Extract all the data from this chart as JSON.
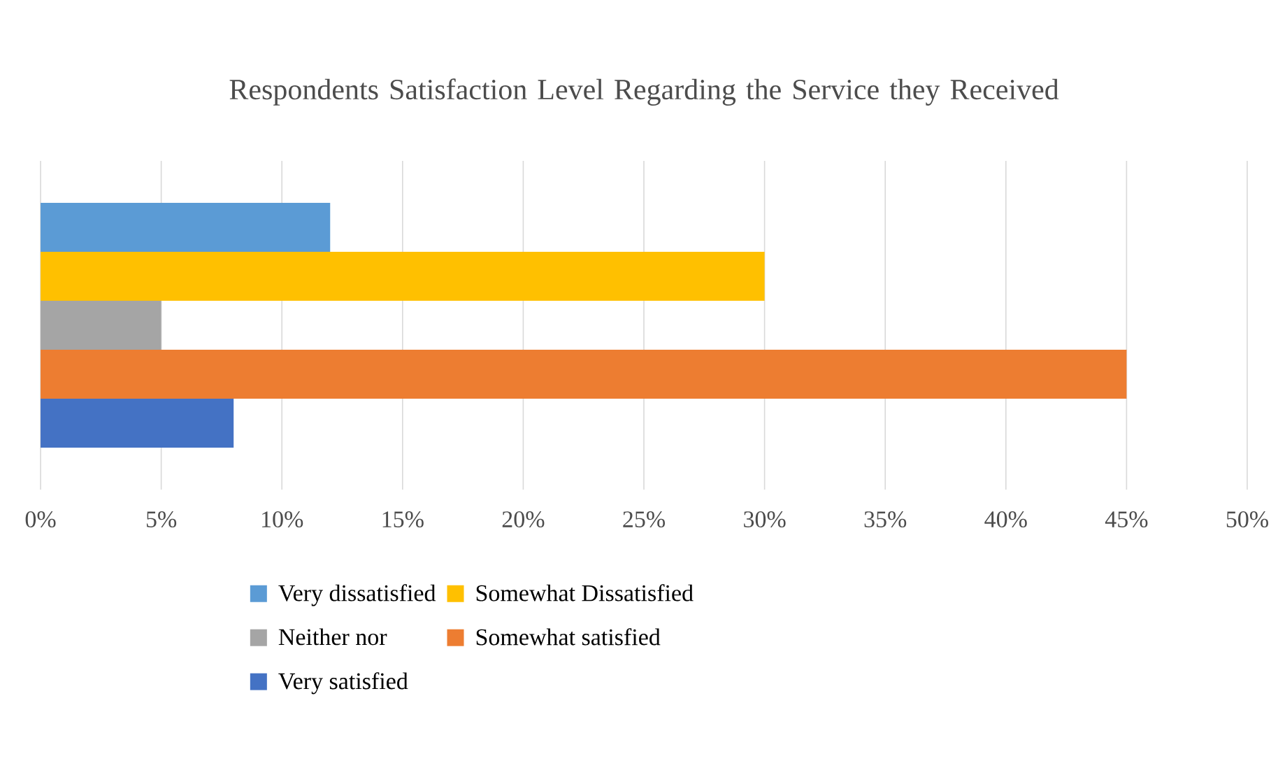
{
  "chart_data": {
    "type": "bar",
    "orientation": "horizontal",
    "title": "Respondents Satisfaction Level Regarding the Service they Received",
    "categories": [
      null
    ],
    "series": [
      {
        "name": "Very dissatisfied",
        "color": "#5b9bd5",
        "values": [
          12
        ]
      },
      {
        "name": "Somewhat Dissatisfied",
        "color": "#ffc000",
        "values": [
          30
        ]
      },
      {
        "name": "Neither nor",
        "color": "#a5a5a5",
        "values": [
          5
        ]
      },
      {
        "name": "Somewhat satisfied",
        "color": "#ed7d31",
        "values": [
          45
        ]
      },
      {
        "name": "Very satisfied",
        "color": "#4472c4",
        "values": [
          8
        ]
      }
    ],
    "xlim": [
      0,
      50
    ],
    "xticks": [
      {
        "value": 0,
        "label": "0%"
      },
      {
        "value": 5,
        "label": "5%"
      },
      {
        "value": 10,
        "label": "10%"
      },
      {
        "value": 15,
        "label": "15%"
      },
      {
        "value": 20,
        "label": "20%"
      },
      {
        "value": 25,
        "label": "25%"
      },
      {
        "value": 30,
        "label": "30%"
      },
      {
        "value": 35,
        "label": "35%"
      },
      {
        "value": 40,
        "label": "40%"
      },
      {
        "value": 45,
        "label": "45%"
      },
      {
        "value": 50,
        "label": "50%"
      }
    ],
    "grid": "x",
    "legend": "bottom"
  }
}
